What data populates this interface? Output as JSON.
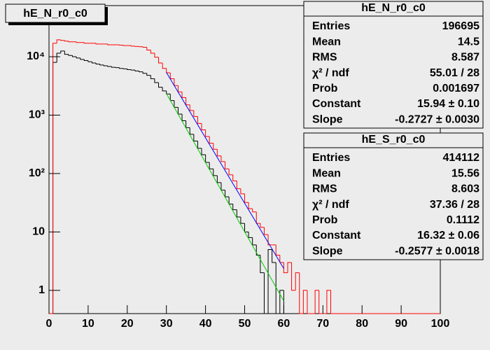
{
  "chart_data": {
    "type": "histogram",
    "title": "hE_N_r0_c0",
    "log_y": true,
    "bins": [
      0,
      1,
      2,
      3,
      4,
      5,
      6,
      7,
      8,
      9,
      10,
      11,
      12,
      13,
      14,
      15,
      16,
      17,
      18,
      19,
      20,
      21,
      22,
      23,
      24,
      25,
      26,
      27,
      28,
      29,
      30,
      31,
      32,
      33,
      34,
      35,
      36,
      37,
      38,
      39,
      40,
      41,
      42,
      43,
      44,
      45,
      46,
      47,
      48,
      49,
      50,
      51,
      52,
      53,
      54,
      55,
      56,
      57,
      58,
      59,
      60,
      61,
      62,
      63,
      64,
      65,
      66,
      67,
      68,
      69,
      70,
      71,
      72,
      73,
      74,
      75,
      76,
      77,
      78,
      79,
      80,
      81,
      82,
      83,
      84,
      85,
      86,
      87,
      88,
      89,
      90,
      91,
      92,
      93,
      94,
      95,
      96,
      97,
      98,
      99,
      100
    ],
    "xlim": [
      0,
      100
    ],
    "xticks": [
      0,
      10,
      20,
      30,
      40,
      50,
      60,
      70,
      80,
      90,
      100
    ],
    "ylim": [
      0.4,
      75000
    ],
    "yticks": [
      1,
      10,
      {
        "value": 100,
        "label": "10²"
      },
      {
        "value": 1000,
        "label": "10³"
      },
      {
        "value": 10000,
        "label": "10⁴"
      }
    ],
    "series": [
      {
        "name": "hE_N_r0_c0",
        "color": "#000000",
        "values": [
          0,
          8000,
          11500,
          12500,
          11000,
          10500,
          10000,
          9500,
          9000,
          8600,
          8200,
          7800,
          7500,
          7200,
          7000,
          6800,
          6600,
          6500,
          6300,
          6200,
          6000,
          5900,
          5700,
          5500,
          5200,
          4800,
          4200,
          3600,
          3000,
          2600,
          2300,
          1780,
          1360,
          1040,
          800,
          610,
          470,
          360,
          270,
          210,
          155,
          120,
          92,
          70,
          52,
          40,
          30,
          24,
          18,
          14,
          10,
          8,
          6,
          4,
          2,
          0,
          5,
          3,
          0,
          1,
          0,
          0,
          0,
          0,
          0,
          0,
          0,
          0,
          0,
          0,
          0,
          0,
          0,
          0,
          0,
          0,
          0,
          0,
          0,
          0,
          0,
          0,
          0,
          0,
          0,
          0,
          0,
          0,
          0,
          0,
          0,
          0,
          0,
          0,
          0,
          0,
          0,
          0,
          0,
          0
        ],
        "fit": {
          "color": "#00cc00",
          "x": [
            30,
            60
          ],
          "values": [
            2344,
            0.66
          ]
        },
        "stats": [
          [
            "Entries",
            "196695"
          ],
          [
            "Mean",
            "14.5"
          ],
          [
            "RMS",
            "8.587"
          ],
          [
            "χ² / ndf",
            "55.01 / 28"
          ],
          [
            "Prob",
            "0.001697"
          ],
          [
            "Constant",
            "15.94 ± 0.10"
          ],
          [
            "Slope",
            "-0.2727 ± 0.0030"
          ]
        ]
      },
      {
        "name": "hE_S_r0_c0",
        "color": "#ff0000",
        "values": [
          0,
          17000,
          19500,
          19000,
          18500,
          18000,
          18000,
          17500,
          17500,
          17000,
          17000,
          17000,
          16500,
          16500,
          16500,
          16000,
          16000,
          16000,
          15800,
          15500,
          15500,
          15200,
          15000,
          14800,
          14500,
          13000,
          11500,
          9800,
          7800,
          6300,
          5300,
          4200,
          3200,
          2500,
          2000,
          1500,
          1200,
          950,
          720,
          560,
          430,
          330,
          260,
          200,
          160,
          120,
          95,
          75,
          55,
          45,
          32,
          25,
          22,
          14,
          12,
          9,
          6,
          6,
          4,
          3,
          2,
          3,
          1,
          2,
          0,
          1,
          0,
          0,
          1,
          0,
          0,
          1,
          0,
          0,
          0,
          0,
          0,
          0,
          0,
          0,
          0,
          0,
          0,
          0,
          0,
          0,
          0,
          0,
          0,
          0,
          0,
          0,
          0,
          0,
          0,
          0,
          0,
          0,
          0,
          0
        ],
        "fit": {
          "color": "#0000ff",
          "x": [
            30,
            60
          ],
          "values": [
            5370,
            2.36
          ]
        },
        "stats": [
          [
            "Entries",
            "414112"
          ],
          [
            "Mean",
            "15.56"
          ],
          [
            "RMS",
            "8.603"
          ],
          [
            "χ² / ndf",
            "37.36 / 28"
          ],
          [
            "Prob",
            "0.1112"
          ],
          [
            "Constant",
            "16.32 ± 0.06"
          ],
          [
            "Slope",
            "-0.2577 ± 0.0018"
          ]
        ]
      }
    ]
  }
}
